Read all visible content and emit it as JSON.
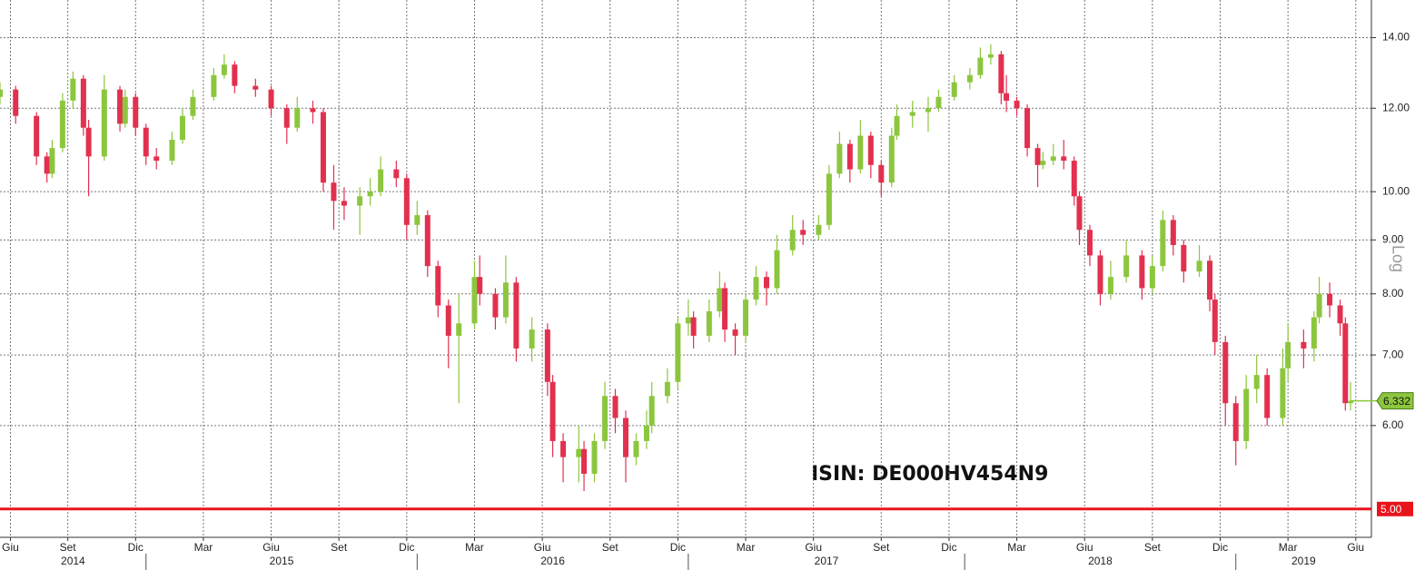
{
  "chart_data": {
    "type": "candlestick",
    "log_scale": true,
    "grid": true,
    "scale_label": "Log",
    "annotation": "ISIN: DE000HV454N9",
    "up_color": "#8cc63e",
    "down_color": "#e2304f",
    "xlim": [
      0,
      263
    ],
    "ylim": [
      4.7,
      15.2
    ],
    "yticks": [
      {
        "value": 6,
        "label": "6.00"
      },
      {
        "value": 7,
        "label": "7.00"
      },
      {
        "value": 8,
        "label": "8.00"
      },
      {
        "value": 9,
        "label": "9.00"
      },
      {
        "value": 10,
        "label": "10.00"
      },
      {
        "value": 12,
        "label": "12.00"
      },
      {
        "value": 14,
        "label": "14.00"
      }
    ],
    "reference_line": {
      "value": 5,
      "label": "5.00",
      "color": "#e8141c"
    },
    "last_value": 6.332,
    "xticks": [
      {
        "value": 2,
        "label": "Giu"
      },
      {
        "value": 13,
        "label": "Set"
      },
      {
        "value": 26,
        "label": "Dic"
      },
      {
        "value": 39,
        "label": "Mar"
      },
      {
        "value": 52,
        "label": "Giu"
      },
      {
        "value": 65,
        "label": "Set"
      },
      {
        "value": 78,
        "label": "Dic"
      },
      {
        "value": 91,
        "label": "Mar"
      },
      {
        "value": 104,
        "label": "Giu"
      },
      {
        "value": 117,
        "label": "Set"
      },
      {
        "value": 130,
        "label": "Dic"
      },
      {
        "value": 143,
        "label": "Mar"
      },
      {
        "value": 156,
        "label": "Giu"
      },
      {
        "value": 169,
        "label": "Set"
      },
      {
        "value": 182,
        "label": "Dic"
      },
      {
        "value": 195,
        "label": "Mar"
      },
      {
        "value": 208,
        "label": "Giu"
      },
      {
        "value": 221,
        "label": "Set"
      },
      {
        "value": 234,
        "label": "Dic"
      },
      {
        "value": 247,
        "label": "Mar"
      },
      {
        "value": 260,
        "label": "Giu"
      }
    ],
    "year_breaks": [
      28,
      80,
      132,
      185,
      237
    ],
    "years": [
      "2014",
      "2015",
      "2016",
      "2017",
      "2018",
      "2019"
    ],
    "x": [
      0,
      3,
      7,
      9,
      10,
      12,
      14,
      16,
      17,
      20,
      23,
      24,
      26,
      28,
      30,
      33,
      35,
      37,
      41,
      43,
      45,
      49,
      52,
      55,
      57,
      60,
      62,
      64,
      66,
      69,
      71,
      73,
      76,
      78,
      80,
      82,
      84,
      86,
      88,
      91,
      92,
      95,
      97,
      99,
      102,
      105,
      106,
      108,
      111,
      112,
      114,
      116,
      118,
      120,
      122,
      124,
      125,
      128,
      130,
      132,
      133,
      136,
      138,
      139,
      141,
      143,
      145,
      147,
      149,
      152,
      154,
      157,
      159,
      161,
      163,
      165,
      167,
      169,
      171,
      172,
      175,
      178,
      180,
      183,
      186,
      188,
      190,
      192,
      193,
      195,
      197,
      199,
      200,
      202,
      204,
      206,
      207,
      209,
      211,
      213,
      216,
      219,
      221,
      223,
      225,
      227,
      230,
      232,
      233,
      235,
      237,
      239,
      241,
      243,
      246,
      247,
      250,
      252,
      253,
      255,
      257,
      258,
      259
    ],
    "open": [
      12.3,
      12.5,
      11.8,
      10.8,
      10.4,
      11.0,
      12.2,
      12.8,
      11.5,
      10.8,
      12.5,
      11.6,
      12.3,
      11.5,
      10.8,
      10.7,
      11.2,
      11.8,
      12.3,
      12.9,
      13.2,
      12.6,
      12.5,
      12.0,
      11.5,
      12.0,
      11.9,
      10.2,
      9.8,
      9.7,
      9.9,
      10.0,
      10.5,
      10.3,
      9.3,
      9.5,
      8.5,
      7.8,
      7.3,
      7.5,
      8.3,
      8.0,
      7.6,
      8.2,
      7.1,
      7.4,
      6.6,
      5.8,
      5.6,
      5.7,
      5.4,
      5.8,
      6.4,
      6.1,
      5.6,
      5.8,
      6.0,
      6.4,
      6.6,
      7.5,
      7.6,
      7.3,
      7.7,
      8.1,
      7.4,
      7.3,
      7.9,
      8.3,
      8.1,
      8.8,
      9.2,
      9.1,
      9.3,
      10.4,
      11.1,
      10.5,
      11.3,
      10.6,
      10.2,
      11.3,
      11.8,
      11.9,
      12.0,
      12.3,
      12.7,
      12.9,
      13.4,
      13.5,
      12.4,
      12.2,
      12.0,
      11.0,
      10.6,
      10.7,
      10.8,
      10.7,
      9.9,
      9.2,
      8.7,
      8.0,
      8.3,
      8.7,
      8.1,
      8.5,
      9.4,
      8.9,
      8.4,
      8.6,
      7.9,
      7.2,
      6.3,
      5.8,
      6.5,
      6.7,
      6.1,
      6.8,
      7.2,
      7.1,
      7.6,
      8.0,
      7.8,
      7.5,
      6.3
    ],
    "high": [
      12.7,
      12.6,
      11.9,
      10.9,
      11.2,
      12.4,
      13.0,
      12.9,
      11.7,
      12.9,
      12.6,
      12.5,
      12.4,
      11.6,
      11.0,
      11.4,
      12.0,
      12.5,
      13.1,
      13.5,
      13.3,
      12.8,
      12.6,
      12.1,
      12.3,
      12.2,
      12.0,
      10.6,
      10.1,
      10.1,
      10.3,
      10.8,
      10.7,
      10.4,
      9.8,
      9.6,
      8.6,
      7.9,
      8.0,
      8.6,
      8.7,
      8.1,
      8.7,
      8.3,
      7.6,
      7.5,
      6.7,
      5.9,
      6.0,
      5.8,
      5.9,
      6.6,
      6.5,
      6.2,
      5.9,
      6.2,
      6.6,
      6.8,
      7.6,
      7.9,
      7.7,
      7.9,
      8.4,
      8.2,
      7.5,
      8.0,
      8.5,
      8.4,
      9.1,
      9.5,
      9.4,
      9.5,
      10.6,
      11.4,
      11.2,
      11.7,
      11.4,
      10.7,
      11.5,
      12.1,
      12.2,
      12.3,
      12.5,
      12.9,
      13.1,
      13.7,
      13.8,
      13.6,
      12.9,
      12.3,
      12.1,
      11.1,
      10.9,
      11.1,
      11.2,
      10.8,
      10.0,
      9.3,
      8.8,
      8.6,
      9.0,
      8.8,
      8.7,
      9.6,
      9.5,
      9.0,
      8.9,
      8.7,
      8.0,
      7.3,
      6.4,
      6.7,
      7.0,
      6.8,
      7.1,
      7.5,
      7.4,
      7.7,
      8.3,
      8.2,
      7.9,
      7.6,
      6.6
    ],
    "low": [
      12.1,
      11.6,
      10.6,
      10.2,
      10.3,
      10.9,
      12.0,
      11.3,
      9.9,
      10.7,
      11.4,
      11.5,
      11.3,
      10.6,
      10.5,
      10.6,
      11.1,
      11.7,
      12.2,
      12.8,
      12.4,
      12.3,
      11.8,
      11.1,
      11.4,
      11.6,
      10.0,
      9.2,
      9.4,
      9.1,
      9.7,
      9.9,
      10.1,
      9.0,
      9.1,
      8.3,
      7.6,
      6.8,
      6.3,
      7.4,
      7.8,
      7.4,
      7.5,
      6.9,
      6.9,
      6.4,
      5.6,
      5.3,
      5.3,
      5.2,
      5.3,
      5.7,
      5.9,
      5.3,
      5.5,
      5.7,
      5.9,
      6.3,
      6.5,
      7.3,
      7.1,
      7.2,
      7.6,
      7.2,
      7.0,
      7.2,
      7.8,
      7.8,
      8.0,
      8.7,
      8.9,
      9.0,
      9.2,
      10.3,
      10.2,
      10.4,
      10.3,
      9.9,
      10.1,
      11.2,
      11.5,
      11.4,
      11.9,
      12.2,
      12.5,
      12.8,
      13.2,
      12.1,
      11.9,
      11.8,
      10.8,
      10.1,
      10.5,
      10.6,
      10.5,
      9.7,
      8.9,
      8.5,
      7.8,
      7.9,
      8.2,
      7.9,
      8.0,
      8.4,
      8.7,
      8.2,
      8.3,
      7.7,
      7.0,
      6.0,
      5.5,
      5.7,
      6.3,
      6.0,
      6.0,
      6.6,
      6.8,
      6.9,
      7.5,
      7.6,
      7.3,
      6.2,
      6.2
    ],
    "close": [
      12.5,
      11.8,
      10.8,
      10.4,
      11.0,
      12.2,
      12.8,
      11.5,
      10.8,
      12.5,
      11.6,
      12.3,
      11.5,
      10.8,
      10.7,
      11.2,
      11.8,
      12.3,
      12.9,
      13.2,
      12.6,
      12.5,
      12.0,
      11.5,
      12.0,
      11.9,
      10.2,
      9.8,
      9.7,
      9.9,
      10.0,
      10.5,
      10.3,
      9.3,
      9.5,
      8.5,
      7.8,
      7.3,
      7.5,
      8.3,
      8.0,
      7.6,
      8.2,
      7.1,
      7.4,
      6.6,
      5.8,
      5.6,
      5.7,
      5.4,
      5.8,
      6.4,
      6.1,
      5.6,
      5.8,
      6.0,
      6.4,
      6.6,
      7.5,
      7.6,
      7.3,
      7.7,
      8.1,
      7.4,
      7.3,
      7.9,
      8.3,
      8.1,
      8.8,
      9.2,
      9.1,
      9.3,
      10.4,
      11.1,
      10.5,
      11.3,
      10.6,
      10.2,
      11.3,
      11.8,
      11.9,
      12.0,
      12.3,
      12.7,
      12.9,
      13.4,
      13.5,
      12.4,
      12.2,
      12.0,
      11.0,
      10.6,
      10.7,
      10.8,
      10.7,
      9.9,
      9.2,
      8.7,
      8.0,
      8.3,
      8.7,
      8.1,
      8.5,
      9.4,
      8.9,
      8.4,
      8.6,
      7.9,
      7.2,
      6.3,
      5.8,
      6.5,
      6.7,
      6.1,
      6.8,
      7.2,
      7.1,
      7.6,
      8.0,
      7.8,
      7.5,
      6.3,
      6.332
    ]
  }
}
